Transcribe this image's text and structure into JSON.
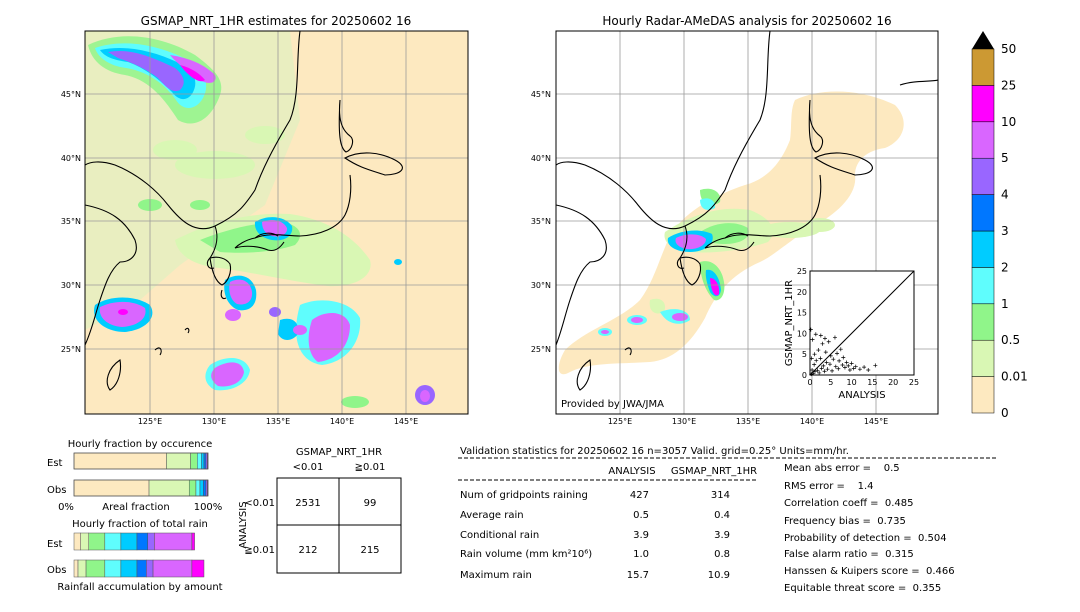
{
  "left_map": {
    "title": "GSMAP_NRT_1HR estimates for 20250602 16",
    "lon_ticks": [
      "125°E",
      "130°E",
      "135°E",
      "140°E",
      "145°E"
    ],
    "lat_ticks": [
      "45°N",
      "40°N",
      "35°N",
      "30°N",
      "25°N"
    ]
  },
  "right_map": {
    "title": "Hourly Radar-AMeDAS analysis for 20250602 16",
    "lon_ticks": [
      "125°E",
      "130°E",
      "135°E",
      "140°E",
      "145°E"
    ],
    "lat_ticks": [
      "45°N",
      "40°N",
      "35°N",
      "30°N",
      "25°N"
    ],
    "credit": "Provided by JWA/JMA"
  },
  "colorbar": {
    "labels": [
      "0",
      "0.01",
      "0.5",
      "1",
      "2",
      "3",
      "4",
      "5",
      "10",
      "25",
      "50"
    ],
    "colors": [
      "#fde9c0",
      "#d9f7b4",
      "#90f58a",
      "#5ffdfd",
      "#00ccff",
      "#0077ff",
      "#9966ff",
      "#d966ff",
      "#ff00ff",
      "#cc9933"
    ]
  },
  "chart_data": [
    {
      "type": "scatter",
      "xlabel": "ANALYSIS",
      "ylabel": "GSMAP_NRT_1HR",
      "xlim": [
        0,
        25
      ],
      "ylim": [
        0,
        25
      ],
      "x_ticks": [
        "0",
        "5",
        "10",
        "15",
        "20",
        "25"
      ],
      "y_ticks": [
        "0",
        "5",
        "10",
        "15",
        "20",
        "25"
      ],
      "points": [
        [
          0.3,
          0.2
        ],
        [
          0.5,
          1.2
        ],
        [
          0.8,
          0.4
        ],
        [
          1.0,
          2.5
        ],
        [
          1.2,
          0.8
        ],
        [
          1.5,
          3.5
        ],
        [
          1.8,
          1.1
        ],
        [
          2.0,
          6.0
        ],
        [
          2.2,
          0.5
        ],
        [
          2.5,
          4.0
        ],
        [
          2.8,
          1.6
        ],
        [
          3.0,
          7.5
        ],
        [
          3.2,
          2.2
        ],
        [
          3.5,
          0.9
        ],
        [
          3.8,
          5.5
        ],
        [
          4.0,
          3.0
        ],
        [
          4.2,
          1.4
        ],
        [
          4.5,
          8.0
        ],
        [
          4.8,
          2.6
        ],
        [
          5.0,
          4.6
        ],
        [
          5.3,
          1.0
        ],
        [
          5.6,
          3.8
        ],
        [
          6.0,
          9.0
        ],
        [
          6.2,
          2.0
        ],
        [
          6.5,
          5.2
        ],
        [
          6.8,
          1.5
        ],
        [
          7.0,
          3.4
        ],
        [
          7.4,
          6.2
        ],
        [
          7.8,
          2.4
        ],
        [
          8.0,
          4.2
        ],
        [
          8.4,
          1.8
        ],
        [
          8.8,
          3.0
        ],
        [
          9.2,
          2.2
        ],
        [
          9.6,
          1.2
        ],
        [
          10.0,
          2.8
        ],
        [
          10.5,
          1.6
        ],
        [
          11.0,
          2.0
        ],
        [
          12.0,
          1.4
        ],
        [
          13.0,
          1.9
        ],
        [
          14.0,
          1.2
        ],
        [
          15.7,
          2.3
        ],
        [
          0.2,
          10.9
        ],
        [
          1.4,
          9.8
        ],
        [
          0.6,
          8.5
        ],
        [
          2.6,
          9.5
        ],
        [
          1.1,
          5.0
        ],
        [
          0.4,
          4.0
        ],
        [
          3.6,
          8.8
        ]
      ]
    },
    {
      "type": "bar",
      "title": "Hourly fraction by occurence",
      "categories": [
        "Est",
        "Obs"
      ],
      "xlabel": "Areal fraction",
      "x_ticks": [
        "0%",
        "100%"
      ],
      "series": [
        {
          "category": "Est",
          "fractions": [
            0.69,
            0.18,
            0.05,
            0.03,
            0.02,
            0.015,
            0.01,
            0.005
          ]
        },
        {
          "category": "Obs",
          "fractions": [
            0.56,
            0.3,
            0.05,
            0.03,
            0.025,
            0.02,
            0.01,
            0.005
          ]
        }
      ]
    },
    {
      "type": "bar",
      "title": "Hourly fraction of total rain",
      "categories": [
        "Est",
        "Obs"
      ],
      "xlabel": "Rainfall accumulation by amount",
      "series": [
        {
          "category": "Est",
          "fractions": [
            0.05,
            0.06,
            0.12,
            0.12,
            0.12,
            0.08,
            0.05,
            0.28,
            0.02
          ]
        },
        {
          "category": "Obs",
          "fractions": [
            0.03,
            0.06,
            0.14,
            0.12,
            0.12,
            0.07,
            0.05,
            0.29,
            0.09
          ]
        }
      ]
    },
    {
      "type": "table",
      "title": "GSMAP_NRT_1HR",
      "col_labels": [
        "<0.01",
        "≧0.01"
      ],
      "row_title": "ANALYSIS",
      "row_labels": [
        "<0.01",
        "≧0.01"
      ],
      "cells": [
        [
          "2531",
          "99"
        ],
        [
          "212",
          "215"
        ]
      ]
    }
  ],
  "stats": {
    "header": "Validation statistics for 20250602 16  n=3057 Valid. grid=0.25° Units=mm/hr.",
    "col_analysis": "ANALYSIS",
    "col_gsmap": "GSMAP_NRT_1HR",
    "rows": [
      {
        "label": "Num of gridpoints raining",
        "analysis": "427",
        "gsmap": "314"
      },
      {
        "label": "Average rain",
        "analysis": "0.5",
        "gsmap": "0.4"
      },
      {
        "label": "Conditional rain",
        "analysis": "3.9",
        "gsmap": "3.9"
      },
      {
        "label": "Rain volume (mm km²10⁶)",
        "analysis": "1.0",
        "gsmap": "0.8"
      },
      {
        "label": "Maximum rain",
        "analysis": "15.7",
        "gsmap": "10.9"
      }
    ],
    "scores": [
      "Mean abs error =    0.5",
      "RMS error =    1.4",
      "Correlation coeff =  0.485",
      "Frequency bias =  0.735",
      "Probability of detection =  0.504",
      "False alarm ratio =  0.315",
      "Hanssen & Kuipers score =  0.466",
      "Equitable threat score =  0.355"
    ]
  }
}
